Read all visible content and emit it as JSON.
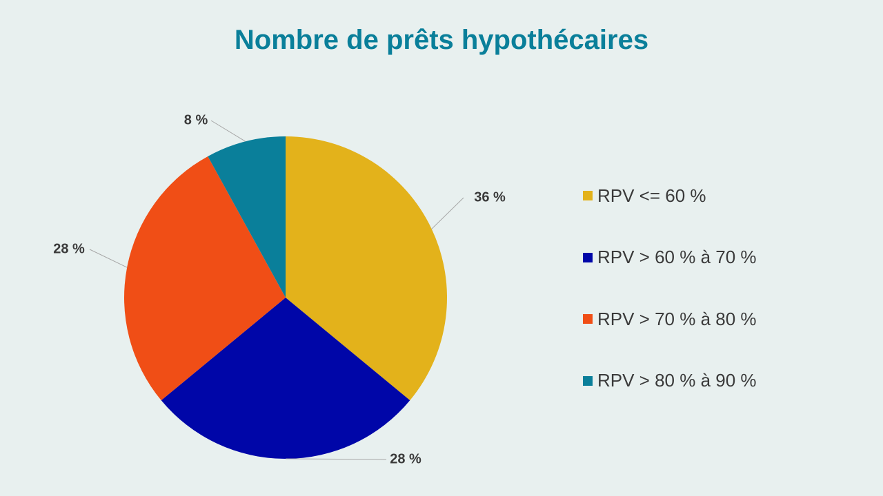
{
  "chart_data": {
    "type": "pie",
    "title": "Nombre de prêts hypothécaires",
    "categories": [
      "RPV <= 60 %",
      "RPV > 60 % à 70 %",
      "RPV > 70 % à 80 %",
      "RPV > 80 % à 90 %"
    ],
    "values": [
      36,
      28,
      28,
      8
    ],
    "data_labels": [
      "36 %",
      "28 %",
      "28 %",
      "8 %"
    ],
    "colors": [
      "#e3b21b",
      "#0006a8",
      "#f04e16",
      "#0a7f9a"
    ],
    "legend_position": "right"
  },
  "colors": {
    "background": "#e8f0ef",
    "title": "#0a7f9a",
    "text": "#3a3a3a",
    "leader_line": "#a6a6a6"
  }
}
